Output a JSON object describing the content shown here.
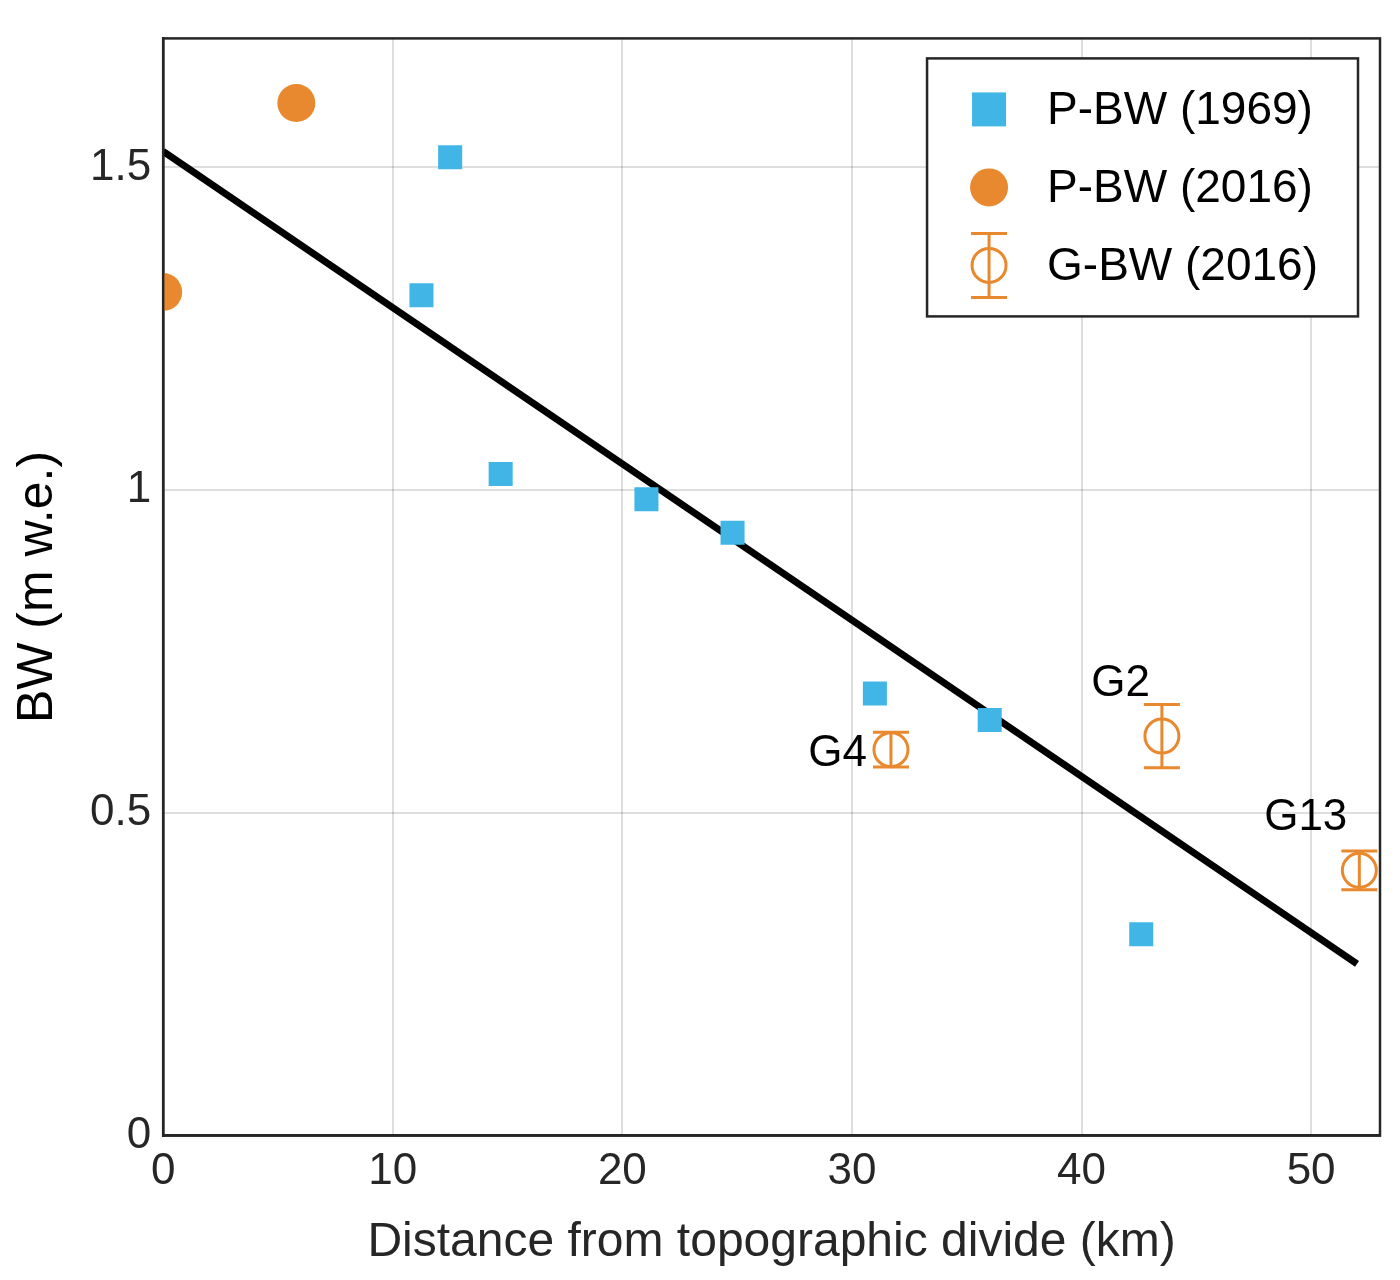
{
  "chart_data": {
    "type": "scatter",
    "x_label": "Distance from topographic divide (km)",
    "y_label": "BW (m w.e.)",
    "xlim": [
      0,
      53
    ],
    "xticks": [
      0,
      10,
      20,
      30,
      40,
      50
    ],
    "ylim": [
      0,
      1.7
    ],
    "yticks": [
      0,
      0.5,
      1,
      1.5
    ],
    "grid": true,
    "legend": "top right",
    "series": [
      {
        "name": "P-BW (1969)",
        "color": "#41b6e6",
        "marker": "square",
        "x": [
          11.25,
          12.5,
          14.7,
          21.05,
          24.8,
          31.0,
          36.0,
          42.6
        ],
        "values": [
          1.302,
          1.516,
          1.025,
          0.986,
          0.934,
          0.685,
          0.644,
          0.312
        ]
      },
      {
        "name": "P-BW (2016)",
        "color": "#e8892f",
        "marker": "circle",
        "x": [
          0,
          5.8
        ],
        "values": [
          1.307,
          1.6
        ]
      },
      {
        "name": "G-BW (2016)",
        "color": "#e8892f",
        "marker": "open_circle",
        "x": [
          31.7,
          43.5,
          52.1
        ],
        "values": [
          0.598,
          0.619,
          0.411
        ],
        "errors": [
          0.027,
          0.049,
          0.03
        ],
        "point_labels": [
          "G4",
          "G2",
          "G13"
        ]
      }
    ],
    "trend_line": {
      "color": "#000000",
      "x": [
        0,
        52
      ],
      "values": [
        1.525,
        0.266
      ]
    }
  }
}
